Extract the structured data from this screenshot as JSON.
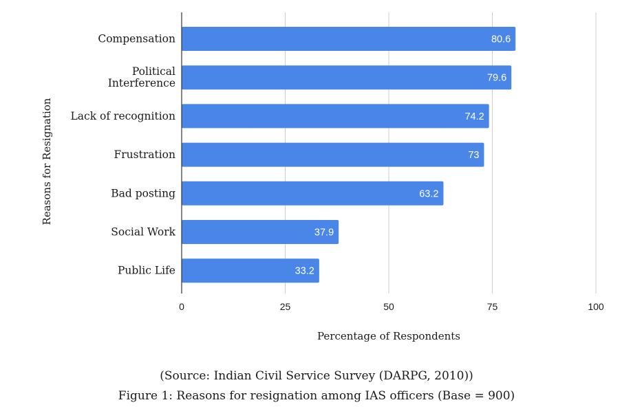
{
  "chart_data": {
    "type": "bar",
    "orientation": "horizontal",
    "categories": [
      [
        "Compensation"
      ],
      [
        "Political",
        "Interference"
      ],
      [
        "Lack of recognition"
      ],
      [
        "Frustration"
      ],
      [
        "Bad posting"
      ],
      [
        "Social Work"
      ],
      [
        "Public Life"
      ]
    ],
    "values": [
      80.6,
      79.6,
      74.2,
      73,
      63.2,
      37.9,
      33.2
    ],
    "value_labels": [
      "80.6",
      "79.6",
      "74.2",
      "73",
      "63.2",
      "37.9",
      "33.2"
    ],
    "xlim": [
      0,
      100
    ],
    "xticks": [
      0,
      25,
      50,
      75,
      100
    ],
    "xlabel": "Percentage of Respondents",
    "ylabel": "Reasons for Resignation",
    "bar_color": "#4a86e8",
    "grid": true,
    "legend": "none"
  },
  "source_text": "(Source: Indian Civil Service Survey (DARPG, 2010))",
  "figure_caption": "Figure 1: Reasons for resignation among IAS officers (Base = 900)"
}
